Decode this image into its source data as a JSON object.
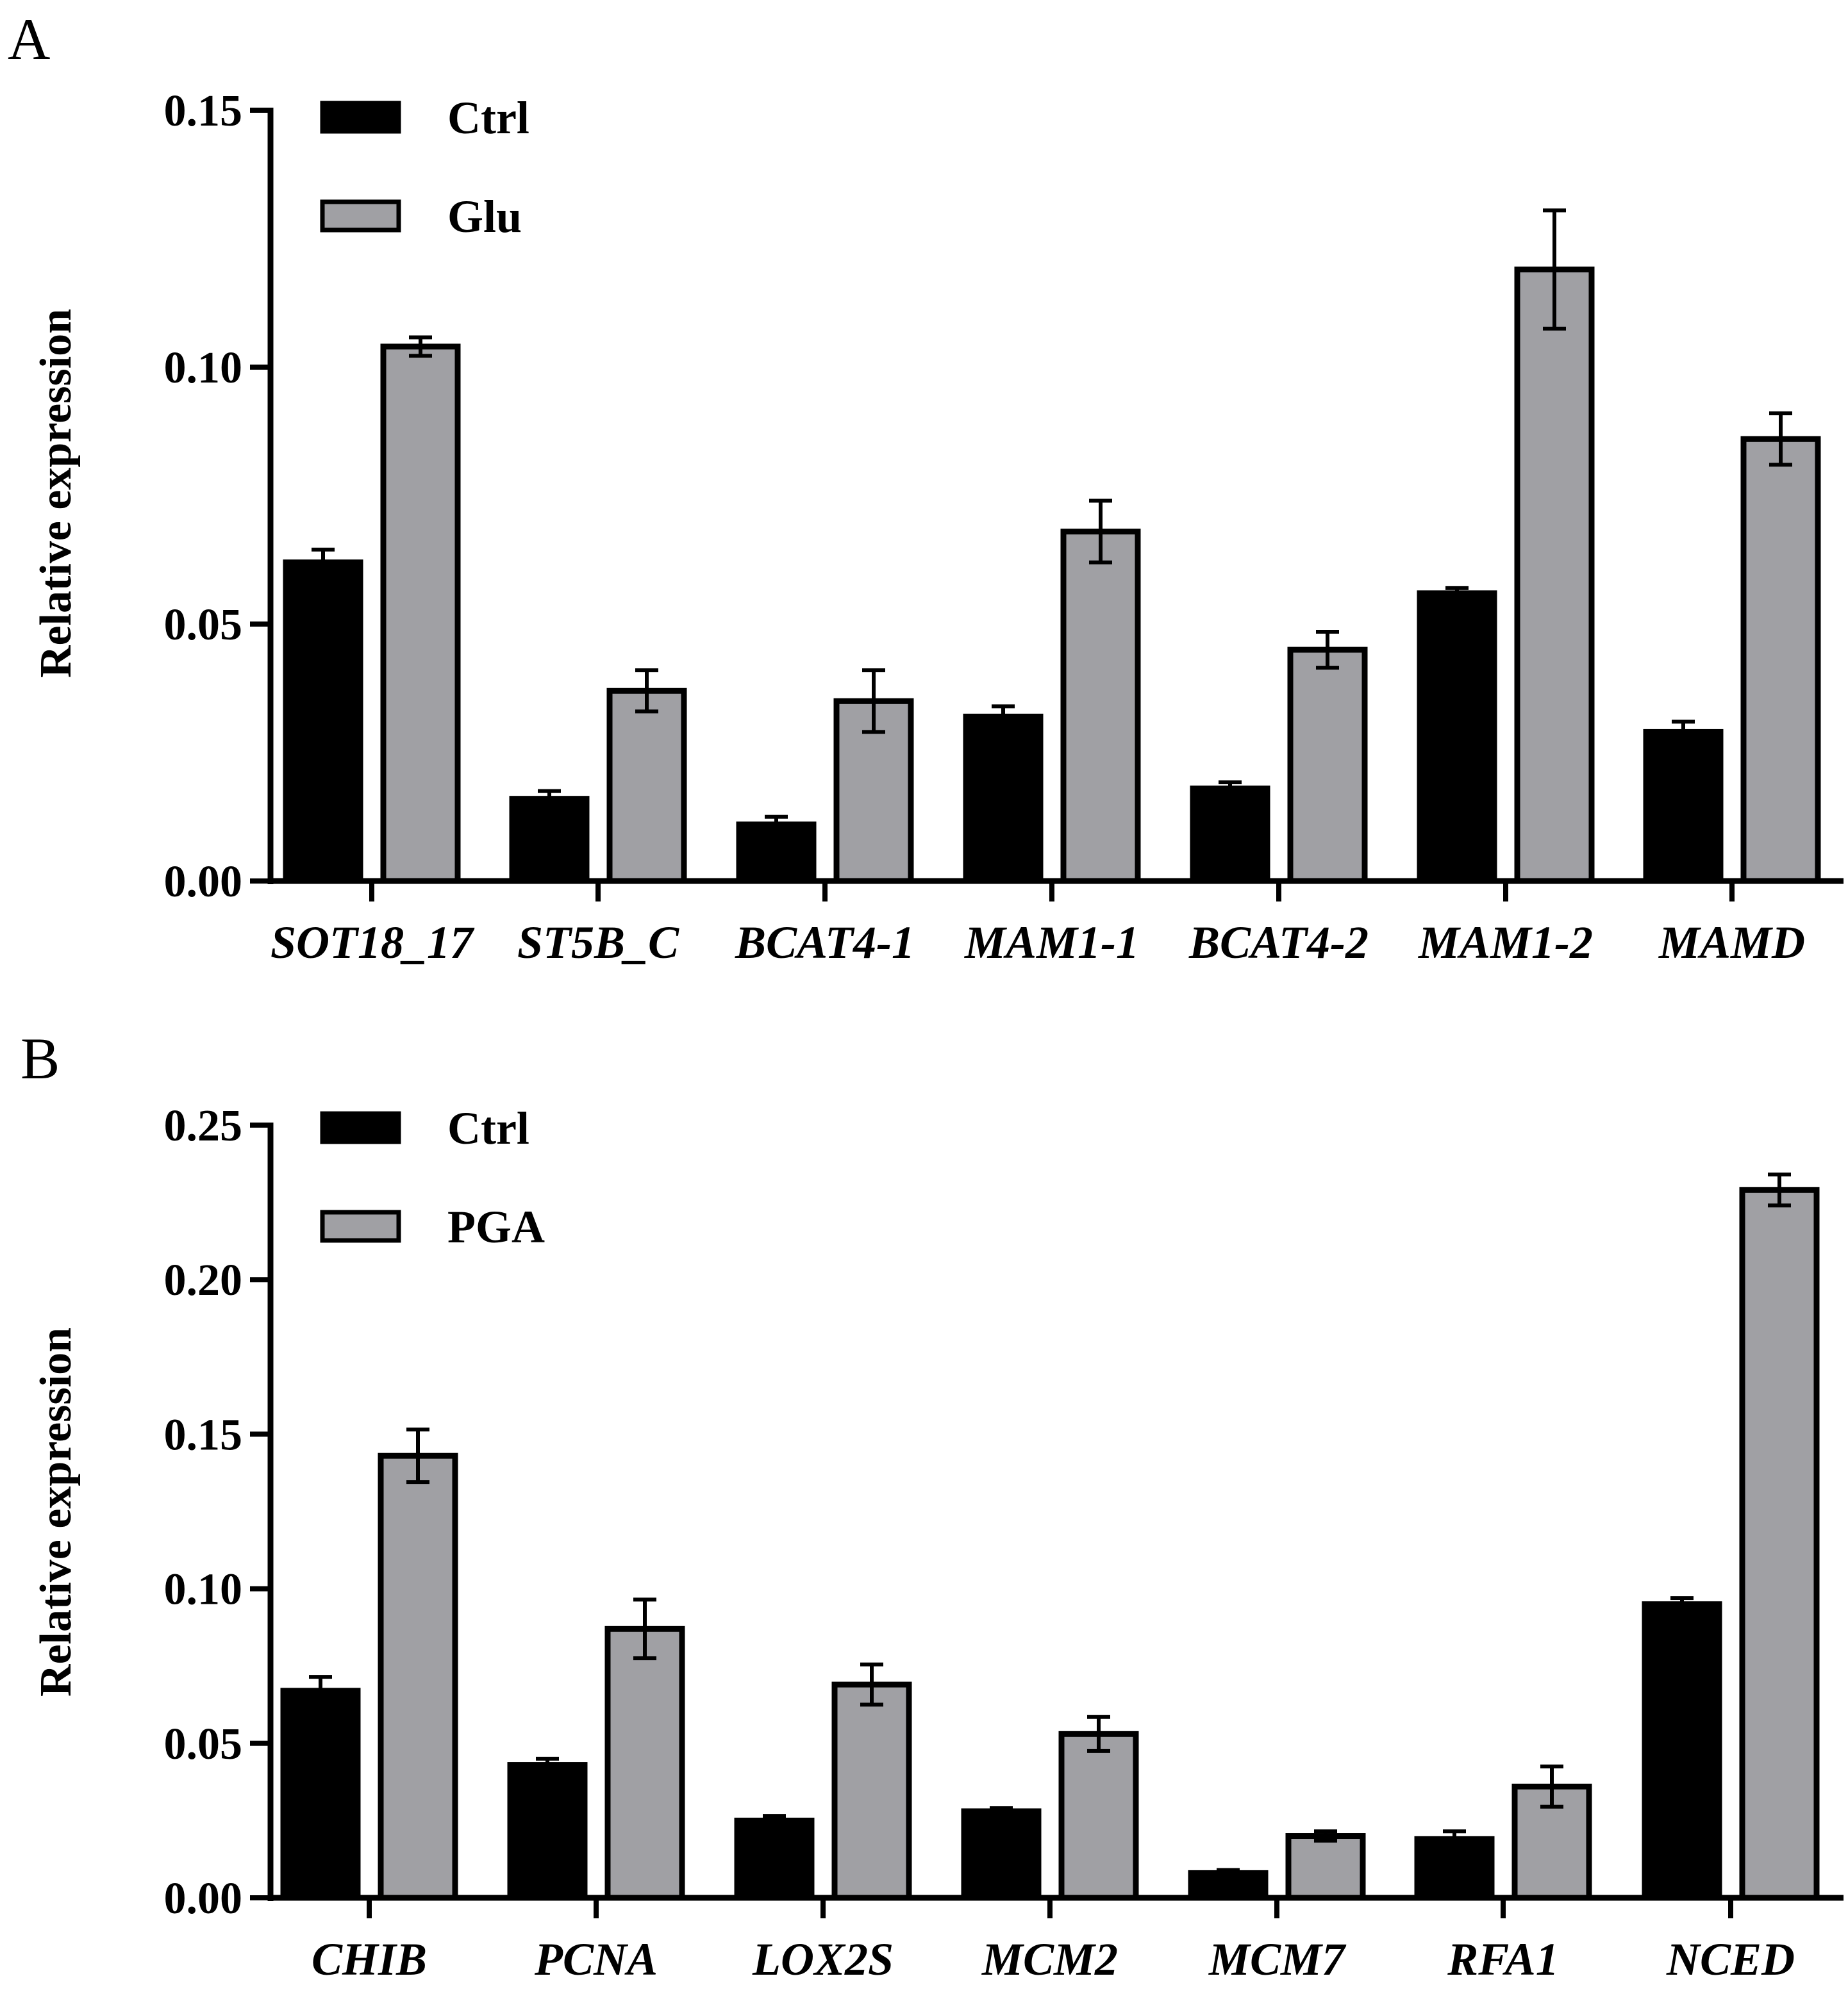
{
  "chart_data": [
    {
      "panel": "A",
      "type": "bar",
      "ylabel": "Relative expression",
      "ylim": [
        0,
        0.15
      ],
      "yticks": [
        "0.00",
        "0.05",
        "0.10",
        "0.15"
      ],
      "categories": [
        "SOT18_17",
        "ST5B_C",
        "BCAT4-1",
        "MAM1-1",
        "BCAT4-2",
        "MAM1-2",
        "MAMD"
      ],
      "legend_position": "top-left",
      "series": [
        {
          "name": "Ctrl",
          "color": "#000000",
          "values": [
            0.062,
            0.016,
            0.011,
            0.032,
            0.018,
            0.056,
            0.029
          ],
          "errors": [
            0.0025,
            0.0015,
            0.0015,
            0.002,
            0.0012,
            0.001,
            0.002
          ]
        },
        {
          "name": "Glu",
          "color": "#a0a0a4",
          "values": [
            0.104,
            0.037,
            0.035,
            0.068,
            0.045,
            0.119,
            0.086
          ],
          "errors": [
            0.0018,
            0.004,
            0.006,
            0.006,
            0.0035,
            0.0115,
            0.005
          ]
        }
      ]
    },
    {
      "panel": "B",
      "type": "bar",
      "ylabel": "Relative expression",
      "ylim": [
        0,
        0.25
      ],
      "yticks": [
        "0.00",
        "0.05",
        "0.10",
        "0.15",
        "0.20",
        "0.25"
      ],
      "categories": [
        "CHIB",
        "PCNA",
        "LOX2S",
        "MCM2",
        "MCM7",
        "RFA1",
        "NCED"
      ],
      "legend_position": "top-left",
      "series": [
        {
          "name": "Ctrl",
          "color": "#000000",
          "values": [
            0.067,
            0.043,
            0.025,
            0.028,
            0.008,
            0.019,
            0.095
          ],
          "errors": [
            0.0045,
            0.002,
            0.0015,
            0.001,
            0.001,
            0.0025,
            0.002
          ]
        },
        {
          "name": "PGA",
          "color": "#a0a0a4",
          "values": [
            0.143,
            0.087,
            0.069,
            0.053,
            0.02,
            0.036,
            0.229
          ],
          "errors": [
            0.0085,
            0.0095,
            0.0065,
            0.0055,
            0.0015,
            0.0065,
            0.005
          ]
        }
      ]
    }
  ]
}
